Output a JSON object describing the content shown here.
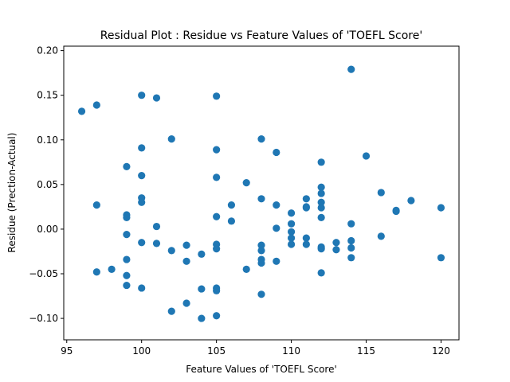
{
  "chart_data": {
    "type": "scatter",
    "title": "Residual Plot : Residue vs Feature Values of 'TOEFL Score'",
    "xlabel": "Feature Values of 'TOEFL Score'",
    "ylabel": "Residue (Prection-Actual)",
    "xlim": [
      94.8,
      121.2
    ],
    "ylim": [
      -0.124,
      0.205
    ],
    "xticks": [
      95,
      100,
      105,
      110,
      115,
      120
    ],
    "yticks": [
      -0.1,
      -0.05,
      0.0,
      0.05,
      0.1,
      0.15,
      0.2
    ],
    "xtick_labels": [
      "95",
      "100",
      "105",
      "110",
      "115",
      "120"
    ],
    "ytick_labels": [
      "−0.10",
      "−0.05",
      "0.00",
      "0.05",
      "0.10",
      "0.15",
      "0.20"
    ],
    "grid": false,
    "marker_color": "#1f77b4",
    "points": [
      {
        "x": 96,
        "y": 0.132
      },
      {
        "x": 97,
        "y": 0.139
      },
      {
        "x": 97,
        "y": 0.027
      },
      {
        "x": 97,
        "y": -0.048
      },
      {
        "x": 98,
        "y": -0.045
      },
      {
        "x": 99,
        "y": 0.07
      },
      {
        "x": 99,
        "y": 0.016
      },
      {
        "x": 99,
        "y": 0.013
      },
      {
        "x": 99,
        "y": -0.006
      },
      {
        "x": 99,
        "y": -0.034
      },
      {
        "x": 99,
        "y": -0.052
      },
      {
        "x": 99,
        "y": -0.063
      },
      {
        "x": 100,
        "y": 0.15
      },
      {
        "x": 100,
        "y": 0.091
      },
      {
        "x": 100,
        "y": 0.06
      },
      {
        "x": 100,
        "y": 0.035
      },
      {
        "x": 100,
        "y": 0.03
      },
      {
        "x": 100,
        "y": -0.015
      },
      {
        "x": 100,
        "y": -0.066
      },
      {
        "x": 101,
        "y": 0.147
      },
      {
        "x": 101,
        "y": 0.003
      },
      {
        "x": 101,
        "y": -0.016
      },
      {
        "x": 102,
        "y": 0.101
      },
      {
        "x": 102,
        "y": -0.024
      },
      {
        "x": 102,
        "y": -0.092
      },
      {
        "x": 103,
        "y": -0.018
      },
      {
        "x": 103,
        "y": -0.036
      },
      {
        "x": 103,
        "y": -0.083
      },
      {
        "x": 104,
        "y": -0.028
      },
      {
        "x": 104,
        "y": -0.067
      },
      {
        "x": 104,
        "y": -0.1
      },
      {
        "x": 105,
        "y": 0.149
      },
      {
        "x": 105,
        "y": 0.089
      },
      {
        "x": 105,
        "y": 0.058
      },
      {
        "x": 105,
        "y": 0.014
      },
      {
        "x": 105,
        "y": -0.017
      },
      {
        "x": 105,
        "y": -0.022
      },
      {
        "x": 105,
        "y": -0.066
      },
      {
        "x": 105,
        "y": -0.069
      },
      {
        "x": 105,
        "y": -0.097
      },
      {
        "x": 106,
        "y": 0.027
      },
      {
        "x": 106,
        "y": 0.009
      },
      {
        "x": 107,
        "y": 0.052
      },
      {
        "x": 107,
        "y": -0.045
      },
      {
        "x": 108,
        "y": 0.101
      },
      {
        "x": 108,
        "y": 0.034
      },
      {
        "x": 108,
        "y": -0.018
      },
      {
        "x": 108,
        "y": -0.024
      },
      {
        "x": 108,
        "y": -0.034
      },
      {
        "x": 108,
        "y": -0.038
      },
      {
        "x": 108,
        "y": -0.073
      },
      {
        "x": 109,
        "y": 0.086
      },
      {
        "x": 109,
        "y": 0.027
      },
      {
        "x": 109,
        "y": 0.001
      },
      {
        "x": 109,
        "y": -0.036
      },
      {
        "x": 110,
        "y": 0.018
      },
      {
        "x": 110,
        "y": 0.006
      },
      {
        "x": 110,
        "y": -0.003
      },
      {
        "x": 110,
        "y": -0.01
      },
      {
        "x": 110,
        "y": -0.017
      },
      {
        "x": 111,
        "y": 0.034
      },
      {
        "x": 111,
        "y": 0.025
      },
      {
        "x": 111,
        "y": 0.024
      },
      {
        "x": 111,
        "y": -0.01
      },
      {
        "x": 111,
        "y": -0.017
      },
      {
        "x": 112,
        "y": 0.075
      },
      {
        "x": 112,
        "y": 0.047
      },
      {
        "x": 112,
        "y": 0.04
      },
      {
        "x": 112,
        "y": 0.03
      },
      {
        "x": 112,
        "y": 0.024
      },
      {
        "x": 112,
        "y": 0.013
      },
      {
        "x": 112,
        "y": -0.02
      },
      {
        "x": 112,
        "y": -0.022
      },
      {
        "x": 112,
        "y": -0.049
      },
      {
        "x": 113,
        "y": -0.015
      },
      {
        "x": 113,
        "y": -0.023
      },
      {
        "x": 114,
        "y": 0.179
      },
      {
        "x": 114,
        "y": 0.006
      },
      {
        "x": 114,
        "y": -0.013
      },
      {
        "x": 114,
        "y": -0.021
      },
      {
        "x": 114,
        "y": -0.032
      },
      {
        "x": 115,
        "y": 0.082
      },
      {
        "x": 116,
        "y": 0.041
      },
      {
        "x": 116,
        "y": -0.008
      },
      {
        "x": 117,
        "y": 0.021
      },
      {
        "x": 117,
        "y": 0.02
      },
      {
        "x": 118,
        "y": 0.032
      },
      {
        "x": 120,
        "y": 0.024
      },
      {
        "x": 120,
        "y": -0.032
      }
    ]
  }
}
